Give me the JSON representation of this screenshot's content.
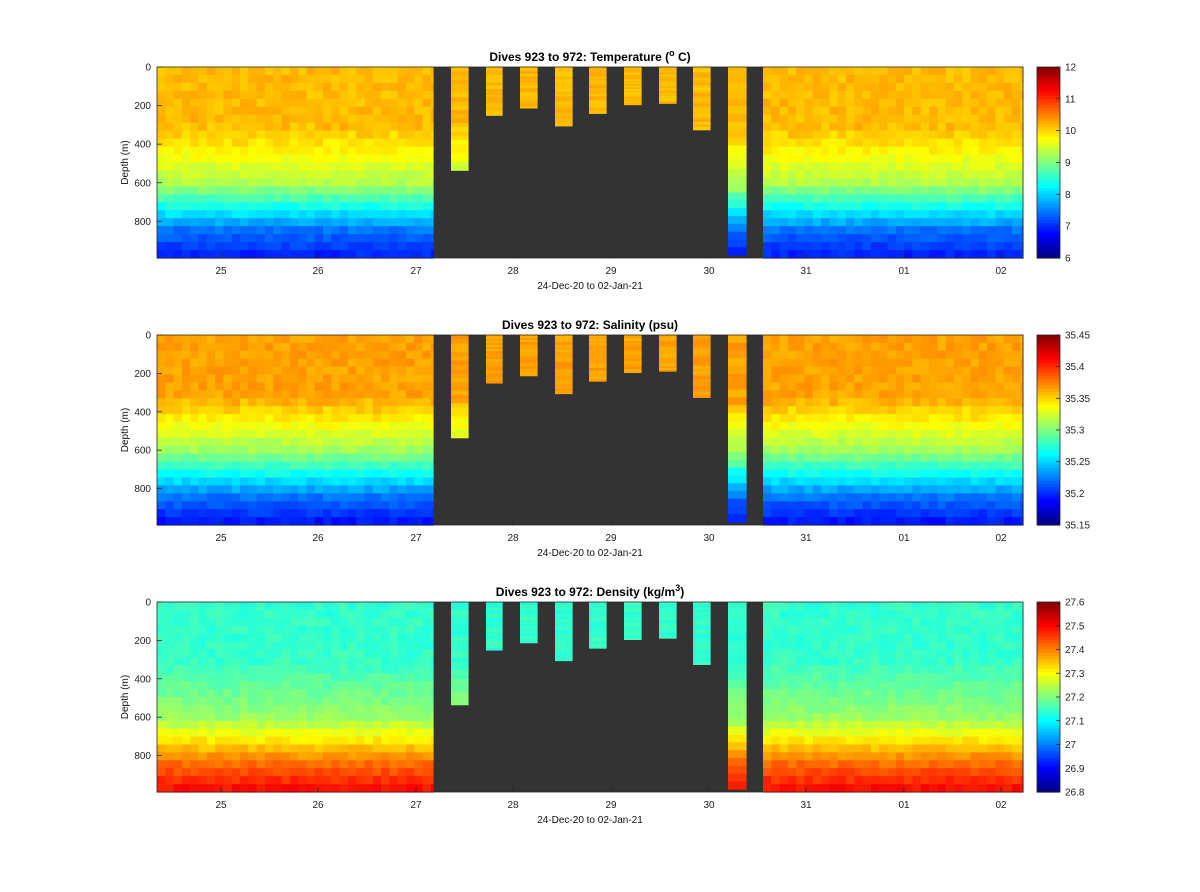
{
  "chart_data": [
    {
      "type": "heatmap",
      "title_prefix": "Dives 923 to 972: Temperature (",
      "title_sup": "o",
      "title_suffix": " C)",
      "xlabel": "24-Dec-20 to 02-Jan-21",
      "ylabel": "Depth (m)",
      "x_ticks": [
        "25",
        "26",
        "27",
        "28",
        "29",
        "30",
        "31",
        "01",
        "02"
      ],
      "y_ticks": [
        "0",
        "200",
        "400",
        "600",
        "800"
      ],
      "ylim": [
        0,
        990
      ],
      "colorbar": {
        "min": 6,
        "max": 12,
        "ticks": [
          "6",
          "7",
          "8",
          "9",
          "10",
          "11",
          "12"
        ]
      },
      "profile": {
        "thermocline_depth": 310,
        "surface_value": 10.15,
        "mid_value": 9.3,
        "deep_value": 7.4,
        "bottom_value": 6.9
      }
    },
    {
      "type": "heatmap",
      "title_prefix": "Dives 923 to 972: Salinity (psu)",
      "title_sup": "",
      "title_suffix": "",
      "xlabel": "24-Dec-20 to 02-Jan-21",
      "ylabel": "Depth (m)",
      "x_ticks": [
        "25",
        "26",
        "27",
        "28",
        "29",
        "30",
        "31",
        "01",
        "02"
      ],
      "y_ticks": [
        "0",
        "200",
        "400",
        "600",
        "800"
      ],
      "ylim": [
        0,
        990
      ],
      "colorbar": {
        "min": 35.15,
        "max": 35.45,
        "ticks": [
          "35.15",
          "35.2",
          "35.25",
          "35.3",
          "35.35",
          "35.4",
          "35.45"
        ]
      },
      "profile": {
        "thermocline_depth": 320,
        "surface_value": 35.365,
        "mid_value": 35.31,
        "deep_value": 35.22,
        "bottom_value": 35.19
      }
    },
    {
      "type": "heatmap",
      "title_prefix": "Dives 923 to 972: Density (kg/m",
      "title_sup": "3",
      "title_suffix": ")",
      "xlabel": "24-Dec-20 to 02-Jan-21",
      "ylabel": "Depth (m)",
      "x_ticks": [
        "25",
        "26",
        "27",
        "28",
        "29",
        "30",
        "31",
        "01",
        "02"
      ],
      "y_ticks": [
        "0",
        "200",
        "400",
        "600",
        "800"
      ],
      "ylim": [
        0,
        990
      ],
      "colorbar": {
        "min": 26.8,
        "max": 27.6,
        "ticks": [
          "26.8",
          "26.9",
          "27",
          "27.1",
          "27.2",
          "27.3",
          "27.4",
          "27.5",
          "27.6"
        ]
      },
      "profile": {
        "thermocline_depth": 300,
        "surface_value": 27.14,
        "mid_value": 27.22,
        "deep_value": 27.42,
        "bottom_value": 27.5
      }
    }
  ],
  "colors": {
    "missing_data": "#333333",
    "colormap": "jet"
  }
}
